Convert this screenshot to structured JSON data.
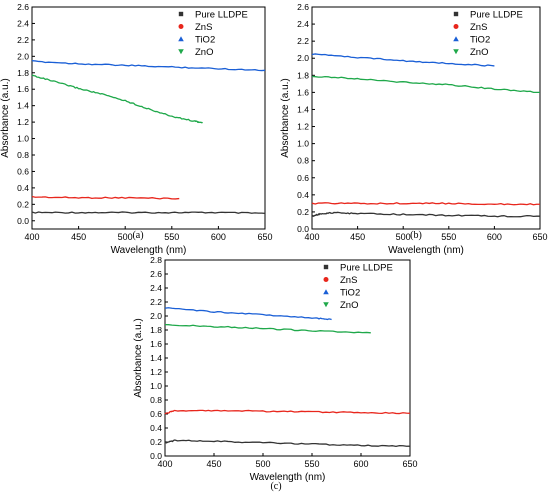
{
  "colors": {
    "Pure LLDPE": "#333333",
    "ZnS": "#e8261c",
    "TiO2": "#1a5fd6",
    "ZnO": "#1fa84a",
    "axis": "#000000",
    "gridline": "#cccccc"
  },
  "chart_data": [
    {
      "type": "line",
      "panel_label": "(a)",
      "title": "",
      "xlabel": "Wavelength (nm)",
      "ylabel": "Absorbance (a.u.)",
      "xlim": [
        400,
        650
      ],
      "ylim": [
        -0.1,
        2.6
      ],
      "xticks": [
        400,
        450,
        500,
        550,
        600,
        650
      ],
      "yticks": [
        0.0,
        0.2,
        0.4,
        0.6,
        0.8,
        1.0,
        1.2,
        1.4,
        1.6,
        1.8,
        2.0,
        2.2,
        2.4,
        2.6
      ],
      "ytick_labels": [
        "0.0",
        "0.2",
        "0.4",
        "0.6",
        "0.8",
        "1.0",
        "1.2",
        "1.4",
        "1.6",
        "1.8",
        "2.0",
        "2.2",
        "2.4",
        "2.6"
      ],
      "legend_position": "top-right",
      "grid": false,
      "series": [
        {
          "name": "Pure LLDPE",
          "marker": "square",
          "x": [
            400,
            450,
            500,
            550,
            600,
            650
          ],
          "y": [
            0.1,
            0.1,
            0.1,
            0.1,
            0.1,
            0.09
          ]
        },
        {
          "name": "ZnS",
          "marker": "circle",
          "x": [
            400,
            450,
            500,
            558
          ],
          "y": [
            0.29,
            0.28,
            0.28,
            0.27
          ]
        },
        {
          "name": "TiO2",
          "marker": "triangle",
          "x": [
            400,
            450,
            500,
            550,
            600,
            650
          ],
          "y": [
            1.94,
            1.91,
            1.89,
            1.87,
            1.85,
            1.83
          ]
        },
        {
          "name": "ZnO",
          "marker": "triangle-down",
          "x": [
            400,
            425,
            450,
            475,
            500,
            525,
            550,
            575,
            583
          ],
          "y": [
            1.77,
            1.69,
            1.61,
            1.54,
            1.46,
            1.36,
            1.27,
            1.21,
            1.19
          ]
        }
      ]
    },
    {
      "type": "line",
      "panel_label": "(b)",
      "title": "",
      "xlabel": "Wavelength (nm)",
      "ylabel": "Absorbance (a.u.)",
      "xlim": [
        400,
        650
      ],
      "ylim": [
        0.0,
        2.6
      ],
      "xticks": [
        400,
        450,
        500,
        550,
        600,
        650
      ],
      "yticks": [
        0.0,
        0.2,
        0.4,
        0.6,
        0.8,
        1.0,
        1.2,
        1.4,
        1.6,
        1.8,
        2.0,
        2.2,
        2.4,
        2.6
      ],
      "ytick_labels": [
        "0.0",
        "0.2",
        "0.4",
        "0.6",
        "0.8",
        "1.0",
        "1.2",
        "1.4",
        "1.6",
        "1.8",
        "2.0",
        "2.2",
        "2.4",
        "2.6"
      ],
      "legend_position": "top-right",
      "grid": false,
      "series": [
        {
          "name": "Pure LLDPE",
          "marker": "square",
          "x": [
            400,
            410,
            425,
            450,
            500,
            550,
            600,
            650
          ],
          "y": [
            0.15,
            0.18,
            0.19,
            0.18,
            0.17,
            0.16,
            0.15,
            0.15
          ]
        },
        {
          "name": "ZnS",
          "marker": "circle",
          "x": [
            400,
            450,
            500,
            550,
            600,
            650
          ],
          "y": [
            0.3,
            0.3,
            0.3,
            0.3,
            0.29,
            0.29
          ]
        },
        {
          "name": "TiO2",
          "marker": "triangle",
          "x": [
            400,
            450,
            500,
            550,
            600
          ],
          "y": [
            2.05,
            2.01,
            1.97,
            1.94,
            1.91
          ]
        },
        {
          "name": "ZnO",
          "marker": "triangle-down",
          "x": [
            400,
            450,
            500,
            550,
            600,
            650
          ],
          "y": [
            1.79,
            1.76,
            1.72,
            1.69,
            1.64,
            1.6
          ]
        }
      ]
    },
    {
      "type": "line",
      "panel_label": "(c)",
      "title": "",
      "xlabel": "Wavelength (nm)",
      "ylabel": "Absorbance (a.u.)",
      "xlim": [
        400,
        650
      ],
      "ylim": [
        0.0,
        2.8
      ],
      "xticks": [
        400,
        450,
        500,
        550,
        600,
        650
      ],
      "yticks": [
        0.0,
        0.2,
        0.4,
        0.6,
        0.8,
        1.0,
        1.2,
        1.4,
        1.6,
        1.8,
        2.0,
        2.2,
        2.4,
        2.6,
        2.8
      ],
      "ytick_labels": [
        "0.0",
        "0.2",
        "0.4",
        "0.6",
        "0.8",
        "1.0",
        "1.2",
        "1.4",
        "1.6",
        "1.8",
        "2.0",
        "2.2",
        "2.4",
        "2.6",
        "2.8"
      ],
      "legend_position": "top-right",
      "grid": false,
      "series": [
        {
          "name": "Pure LLDPE",
          "marker": "square",
          "x": [
            400,
            410,
            450,
            500,
            550,
            600,
            650
          ],
          "y": [
            0.19,
            0.22,
            0.21,
            0.19,
            0.17,
            0.15,
            0.14
          ]
        },
        {
          "name": "ZnS",
          "marker": "circle",
          "x": [
            400,
            410,
            450,
            500,
            550,
            600,
            650
          ],
          "y": [
            0.6,
            0.65,
            0.65,
            0.64,
            0.63,
            0.62,
            0.61
          ]
        },
        {
          "name": "TiO2",
          "marker": "triangle",
          "x": [
            400,
            450,
            500,
            550,
            570
          ],
          "y": [
            2.12,
            2.06,
            2.02,
            1.97,
            1.95
          ]
        },
        {
          "name": "ZnO",
          "marker": "triangle-down",
          "x": [
            400,
            450,
            500,
            550,
            610
          ],
          "y": [
            1.88,
            1.85,
            1.82,
            1.79,
            1.76
          ]
        }
      ]
    }
  ]
}
